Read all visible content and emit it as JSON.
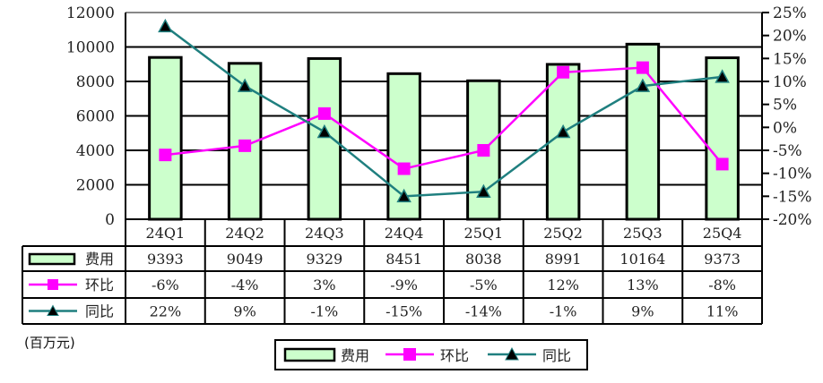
{
  "chart_data": {
    "type": "bar+line",
    "categories": [
      "24Q1",
      "24Q2",
      "24Q3",
      "24Q4",
      "25Q1",
      "25Q2",
      "25Q3",
      "25Q4"
    ],
    "series": [
      {
        "name": "费用",
        "type": "bar",
        "axis": "left",
        "values": [
          9393,
          9049,
          9329,
          8451,
          8038,
          8991,
          10164,
          9373
        ],
        "color": "#CCFFCC",
        "labels": [
          "9393",
          "9049",
          "9329",
          "8451",
          "8038",
          "8991",
          "10164",
          "9373"
        ]
      },
      {
        "name": "环比",
        "type": "line",
        "axis": "right",
        "marker": "square",
        "values": [
          -6,
          -4,
          3,
          -9,
          -5,
          12,
          13,
          -8
        ],
        "color": "#FF00FF",
        "labels": [
          "-6%",
          "-4%",
          "3%",
          "-9%",
          "-5%",
          "12%",
          "13%",
          "-8%"
        ]
      },
      {
        "name": "同比",
        "type": "line",
        "axis": "right",
        "marker": "triangle",
        "values": [
          22,
          9,
          -1,
          -15,
          -14,
          -1,
          9,
          11
        ],
        "color": "#1F7F7F",
        "labels": [
          "22%",
          "9%",
          "-1%",
          "-15%",
          "-14%",
          "-1%",
          "9%",
          "11%"
        ]
      }
    ],
    "left_axis": {
      "ylim": [
        0,
        12000
      ],
      "ticks": [
        "0",
        "2000",
        "4000",
        "6000",
        "8000",
        "10000",
        "12000"
      ]
    },
    "right_axis": {
      "ylim": [
        -20,
        25
      ],
      "ticks": [
        "-20%",
        "-15%",
        "-10%",
        "-5%",
        "0%",
        "5%",
        "10%",
        "15%",
        "20%",
        "25%"
      ]
    },
    "unit_label": "(百万元)",
    "grid": true,
    "legend_placement": "bottom",
    "data_table": true
  }
}
